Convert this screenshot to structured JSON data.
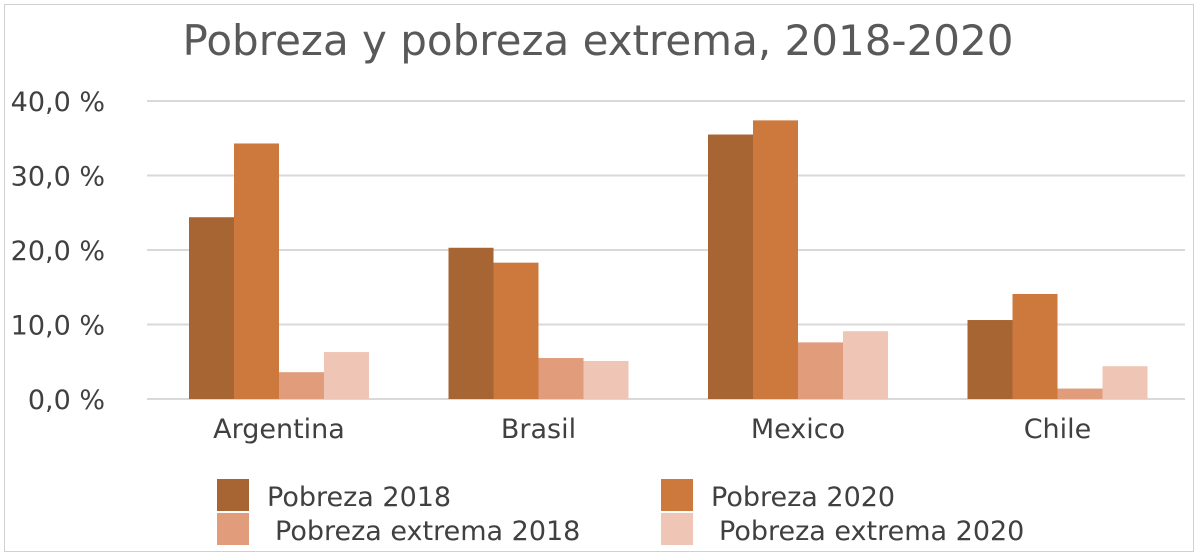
{
  "chart_data": {
    "type": "bar",
    "title": "Pobreza y pobreza extrema, 2018-2020",
    "categories": [
      "Argentina",
      "Brasil",
      "Mexico",
      "Chile"
    ],
    "series": [
      {
        "name": "Pobreza 2018",
        "color": "#a86534",
        "values": [
          24.4,
          20.3,
          35.5,
          10.6
        ]
      },
      {
        "name": "Pobreza 2020",
        "color": "#cd793e",
        "values": [
          34.3,
          18.3,
          37.4,
          14.1
        ]
      },
      {
        "name": "Pobreza extrema 2018",
        "color": "#e19c7c",
        "values": [
          3.6,
          5.5,
          7.6,
          1.4
        ]
      },
      {
        "name": "Pobreza extrema 2020",
        "color": "#efc5b5",
        "values": [
          6.3,
          5.1,
          9.1,
          4.4
        ]
      }
    ],
    "ylim": [
      0,
      40
    ],
    "yticks": [
      0,
      10,
      20,
      30,
      40
    ],
    "ytick_labels": [
      "0,0 %",
      "10,0 %",
      "20,0 %",
      "30,0 %",
      "40,0 %"
    ],
    "grid": true,
    "legend_position": "bottom"
  }
}
